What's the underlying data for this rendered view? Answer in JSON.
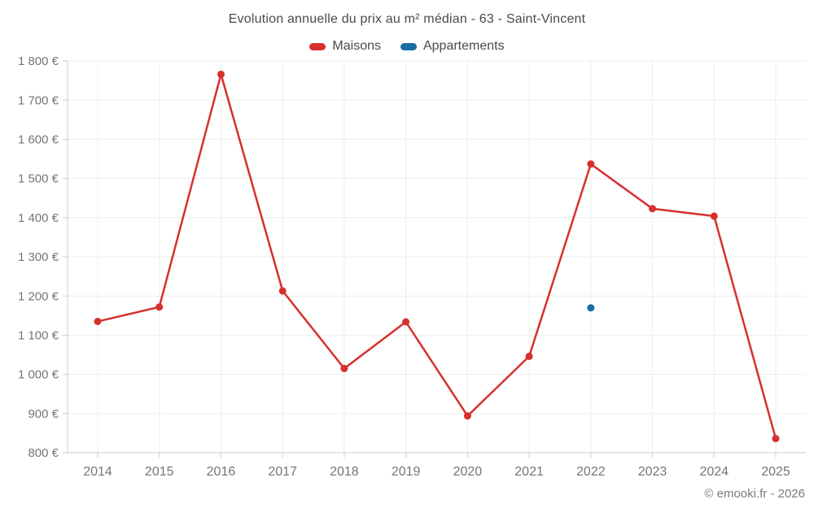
{
  "header": {
    "title": "Evolution annuelle du prix au m² médian - 63 - Saint-Vincent"
  },
  "footer": {
    "credit": "© emooki.fr - 2026"
  },
  "chart_data": {
    "type": "line",
    "title": "Evolution annuelle du prix au m² médian - 63 - Saint-Vincent",
    "categories": [
      "2014",
      "2015",
      "2016",
      "2017",
      "2018",
      "2019",
      "2020",
      "2021",
      "2022",
      "2023",
      "2024",
      "2025"
    ],
    "series": [
      {
        "name": "Maisons",
        "color": "#d7302c",
        "values": [
          1135,
          1172,
          1766,
          1213,
          1015,
          1134,
          894,
          1046,
          1537,
          1423,
          1404,
          836
        ]
      },
      {
        "name": "Appartements",
        "color": "#1a6ca4",
        "values": [
          null,
          null,
          null,
          null,
          null,
          null,
          null,
          null,
          1170,
          null,
          null,
          null
        ]
      }
    ],
    "xlabel": "",
    "ylabel": "",
    "ylim": [
      800,
      1800
    ],
    "y_ticks": [
      800,
      900,
      1000,
      1100,
      1200,
      1300,
      1400,
      1500,
      1600,
      1700,
      1800
    ],
    "y_tick_labels": [
      "800 €",
      "900 €",
      "1 000 €",
      "1 100 €",
      "1 200 €",
      "1 300 €",
      "1 400 €",
      "1 500 €",
      "1 600 €",
      "1 700 €",
      "1 800 €"
    ],
    "grid": true,
    "legend_position": "top",
    "grid_color": "#ededed",
    "axis_color": "#cfcfcf",
    "tick_label_color": "#757575"
  }
}
